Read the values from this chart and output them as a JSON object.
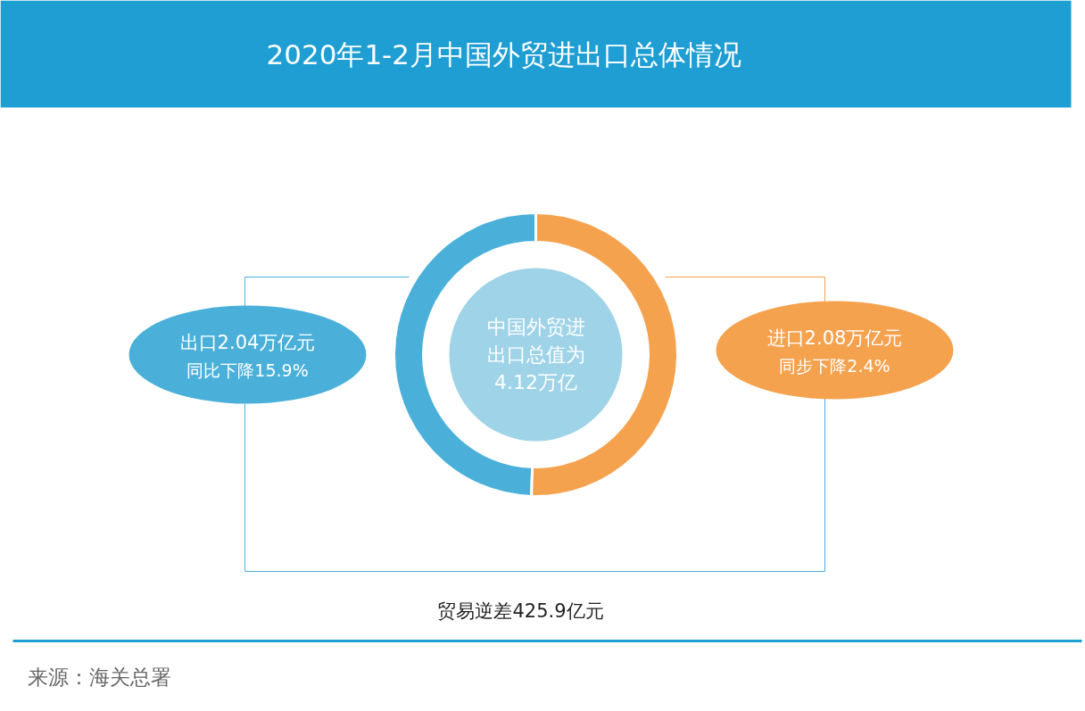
{
  "chart_data": {
    "type": "donut",
    "title": "2020年1-2月中国外贸进出口总体情况",
    "categories": [
      "出口",
      "进口"
    ],
    "values": [
      2.04,
      2.08
    ],
    "value_labels": [
      "2.04万亿元",
      "2.08万亿元"
    ],
    "colors": [
      "#4AB0DA",
      "#F5A24E"
    ],
    "annotations": [
      "同比下降15.9%",
      "同步下降2.4%",
      "中国外贸进",
      "出口总值为",
      "4.12万亿",
      "贸易逆差425.9亿元",
      "来源：海关总署"
    ]
  }
}
